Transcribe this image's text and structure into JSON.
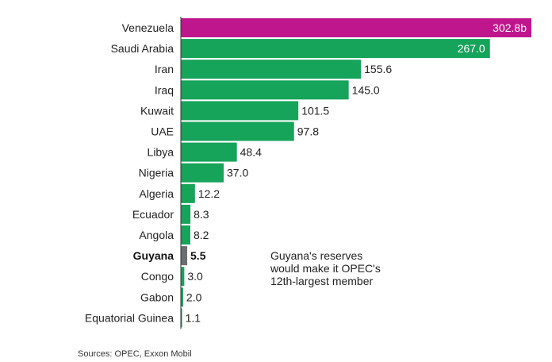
{
  "chart_data": {
    "type": "bar",
    "orientation": "horizontal",
    "categories": [
      "Venezuela",
      "Saudi Arabia",
      "Iran",
      "Iraq",
      "Kuwait",
      "UAE",
      "Libya",
      "Nigeria",
      "Algeria",
      "Ecuador",
      "Angola",
      "Guyana",
      "Congo",
      "Gabon",
      "Equatorial Guinea"
    ],
    "values": [
      302.8,
      267.0,
      155.6,
      145.0,
      101.5,
      97.8,
      48.4,
      37.0,
      12.2,
      8.3,
      8.2,
      5.5,
      3.0,
      2.0,
      1.1
    ],
    "value_labels": [
      "302.8b",
      "267.0",
      "155.6",
      "145.0",
      "101.5",
      "97.8",
      "48.4",
      "37.0",
      "12.2",
      "8.3",
      "8.2",
      "5.5",
      "3.0",
      "2.0",
      "1.1"
    ],
    "highlight": {
      "Venezuela": "#c0168d",
      "Guyana": "#6d6e71"
    },
    "bar_color": "#16a35a",
    "label_inside": [
      "Venezuela",
      "Saudi Arabia"
    ],
    "bold_categories": [
      "Guyana"
    ],
    "grid": false,
    "xlim": [
      0,
      302.8
    ]
  },
  "annotation": {
    "lines": [
      "Guyana's reserves",
      "would make it OPEC's",
      "12th-largest member"
    ]
  },
  "source": "Sources: OPEC, Exxon Mobil"
}
